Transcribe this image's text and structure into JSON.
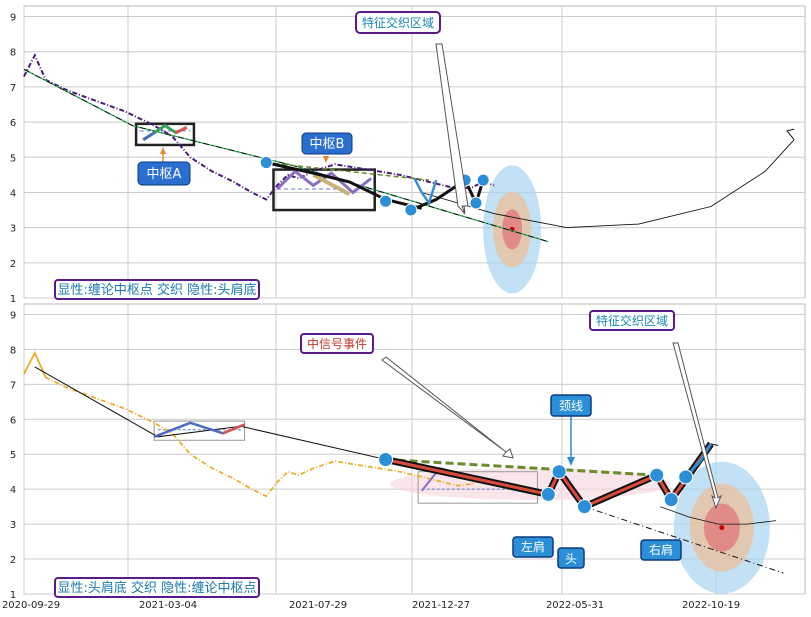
{
  "chart_data": [
    {
      "type": "line",
      "panel": "top",
      "ylim": [
        1,
        9.3
      ],
      "yticks": [
        "1",
        "2",
        "3",
        "4",
        "5",
        "6",
        "7",
        "8",
        "9"
      ],
      "grid": true,
      "annotations": {
        "caption": "显性:缠论中枢点 交织 隐性:头肩底",
        "zone_a": "中枢A",
        "zone_b": "中枢B",
        "feature_region": "特征交织区域"
      },
      "series": [
        {
          "values": [
            [
              0,
              7.3
            ],
            [
              3,
              7.9
            ],
            [
              6,
              7.2
            ],
            [
              12,
              6.9
            ],
            [
              20,
              6.6
            ],
            [
              28,
              6.3
            ],
            [
              36,
              5.9
            ],
            [
              41,
              5.6
            ],
            [
              46,
              5.0
            ],
            [
              52,
              4.6
            ],
            [
              58,
              4.3
            ],
            [
              63,
              4.0
            ],
            [
              67,
              3.8
            ],
            [
              70,
              4.2
            ],
            [
              73,
              4.5
            ],
            [
              76,
              4.4
            ],
            [
              80,
              4.6
            ],
            [
              86,
              4.8
            ],
            [
              92,
              4.7
            ],
            [
              98,
              4.6
            ],
            [
              104,
              4.5
            ],
            [
              108,
              4.4
            ],
            [
              112,
              4.3
            ],
            [
              116,
              4.2
            ],
            [
              120,
              4.1
            ],
            [
              124,
              4.15
            ],
            [
              127,
              4.3
            ],
            [
              130,
              4.2
            ]
          ]
        },
        {
          "values": [
            [
              33,
              5.5
            ],
            [
              36,
              5.7
            ],
            [
              39,
              5.9
            ],
            [
              42,
              5.7
            ],
            [
              45,
              5.85
            ]
          ]
        },
        {
          "values": [
            [
              67,
              4.85
            ],
            [
              80,
              4.55
            ],
            [
              90,
              4.3
            ],
            [
              100,
              3.8
            ],
            [
              110,
              3.55
            ]
          ]
        },
        {
          "values": [
            [
              108,
              4.4
            ],
            [
              110,
              4.0
            ],
            [
              112,
              3.7
            ],
            [
              114,
              4.35
            ]
          ]
        },
        {
          "values": [
            [
              0,
              7.5
            ],
            [
              30,
              5.9
            ],
            [
              75,
              4.75
            ],
            [
              145,
              2.6
            ]
          ]
        },
        {
          "values": [
            [
              67,
              4.85
            ],
            [
              112,
              4.35
            ]
          ]
        },
        {
          "values": [
            [
              110,
              4.0
            ],
            [
              130,
              3.4
            ],
            [
              150,
              3.0
            ],
            [
              170,
              3.1
            ],
            [
              190,
              3.6
            ],
            [
              205,
              4.6
            ],
            [
              213,
              5.5
            ]
          ]
        }
      ],
      "points": [
        [
          67,
          4.85
        ],
        [
          100,
          3.75
        ],
        [
          107,
          3.5
        ],
        [
          122,
          4.35
        ],
        [
          125,
          3.7
        ],
        [
          127,
          4.35
        ]
      ],
      "highlight": {
        "x": 135,
        "y": 2.95
      }
    },
    {
      "type": "line",
      "panel": "bottom",
      "ylim": [
        1,
        9.3
      ],
      "yticks": [
        "1",
        "2",
        "3",
        "4",
        "5",
        "6",
        "7",
        "8",
        "9"
      ],
      "xticks": [
        "2020-09-29",
        "2021-03-04",
        "2021-07-29",
        "2021-12-27",
        "2022-05-31",
        "2022-10-19"
      ],
      "grid": true,
      "annotations": {
        "caption": "显性:头肩底 交织 隐性:缠论中枢点",
        "event": "中信号事件",
        "feature_region": "特征交织区域",
        "neckline": "颈线",
        "left_shoulder": "左肩",
        "head": "头",
        "right_shoulder": "右肩"
      },
      "series": [
        {
          "values": [
            [
              0,
              7.3
            ],
            [
              3,
              7.9
            ],
            [
              6,
              7.2
            ],
            [
              12,
              6.9
            ],
            [
              20,
              6.6
            ],
            [
              28,
              6.3
            ],
            [
              36,
              5.9
            ],
            [
              41,
              5.6
            ],
            [
              46,
              5.0
            ],
            [
              52,
              4.6
            ],
            [
              58,
              4.3
            ],
            [
              63,
              4.0
            ],
            [
              67,
              3.8
            ],
            [
              70,
              4.2
            ],
            [
              73,
              4.5
            ],
            [
              76,
              4.4
            ],
            [
              80,
              4.6
            ],
            [
              86,
              4.8
            ],
            [
              92,
              4.7
            ],
            [
              98,
              4.6
            ],
            [
              104,
              4.5
            ],
            [
              108,
              4.4
            ],
            [
              112,
              4.3
            ],
            [
              116,
              4.2
            ],
            [
              120,
              4.1
            ],
            [
              124,
              4.15
            ],
            [
              127,
              4.3
            ],
            [
              130,
              4.2
            ]
          ]
        },
        {
          "values": [
            [
              36,
              5.5
            ],
            [
              46,
              5.9
            ],
            [
              55,
              5.6
            ],
            [
              61,
              5.85
            ]
          ]
        },
        {
          "values": [
            [
              100,
              4.85
            ],
            [
              145,
              3.85
            ],
            [
              148,
              4.5
            ],
            [
              155,
              3.5
            ],
            [
              175,
              4.4
            ],
            [
              179,
              3.7
            ],
            [
              190,
              5.3
            ]
          ]
        },
        {
          "values": [
            [
              100,
              4.85
            ],
            [
              175,
              4.4
            ]
          ]
        },
        {
          "values": [
            [
              3,
              7.5
            ],
            [
              37,
              5.5
            ],
            [
              60,
              5.8
            ],
            [
              145,
              3.8
            ],
            [
              150,
              3.5
            ],
            [
              210,
              1.6
            ]
          ]
        }
      ],
      "points": [
        [
          100,
          4.85
        ],
        [
          145,
          3.85
        ],
        [
          148,
          4.5
        ],
        [
          155,
          3.5
        ],
        [
          175,
          4.4
        ],
        [
          179,
          3.7
        ],
        [
          183,
          4.35
        ]
      ],
      "highlight": {
        "x": 193,
        "y": 2.9
      }
    }
  ]
}
